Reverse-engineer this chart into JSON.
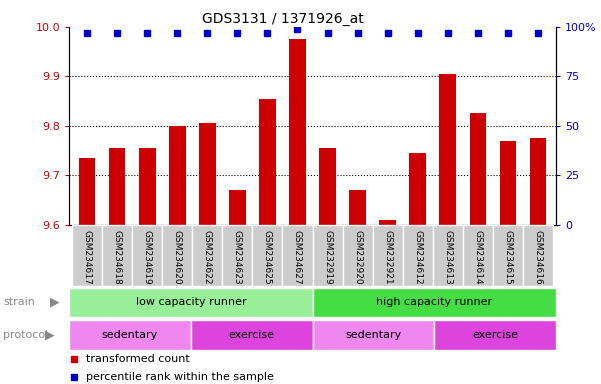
{
  "title": "GDS3131 / 1371926_at",
  "samples": [
    "GSM234617",
    "GSM234618",
    "GSM234619",
    "GSM234620",
    "GSM234622",
    "GSM234623",
    "GSM234625",
    "GSM234627",
    "GSM232919",
    "GSM232920",
    "GSM232921",
    "GSM234612",
    "GSM234613",
    "GSM234614",
    "GSM234615",
    "GSM234616"
  ],
  "transformed_count": [
    9.735,
    9.755,
    9.755,
    9.8,
    9.805,
    9.67,
    9.855,
    9.975,
    9.755,
    9.67,
    9.61,
    9.745,
    9.905,
    9.825,
    9.77,
    9.775
  ],
  "percentile_rank": [
    97,
    97,
    97,
    97,
    97,
    97,
    97,
    99,
    97,
    97,
    97,
    97,
    97,
    97,
    97,
    97
  ],
  "ylim_left": [
    9.6,
    10.0
  ],
  "ylim_right": [
    0,
    100
  ],
  "yticks_left": [
    9.6,
    9.7,
    9.8,
    9.9,
    10.0
  ],
  "yticks_right": [
    0,
    25,
    50,
    75,
    100
  ],
  "bar_color": "#cc0000",
  "dot_color": "#0000cc",
  "strain_groups": [
    {
      "label": "low capacity runner",
      "start": 0,
      "end": 8,
      "color": "#99ee99"
    },
    {
      "label": "high capacity runner",
      "start": 8,
      "end": 16,
      "color": "#44dd44"
    }
  ],
  "protocol_groups": [
    {
      "label": "sedentary",
      "start": 0,
      "end": 4,
      "color": "#ee88ee"
    },
    {
      "label": "exercise",
      "start": 4,
      "end": 8,
      "color": "#dd44dd"
    },
    {
      "label": "sedentary",
      "start": 8,
      "end": 12,
      "color": "#ee88ee"
    },
    {
      "label": "exercise",
      "start": 12,
      "end": 16,
      "color": "#dd44dd"
    }
  ],
  "legend_items": [
    {
      "label": "transformed count",
      "color": "#cc0000"
    },
    {
      "label": "percentile rank within the sample",
      "color": "#0000cc"
    }
  ],
  "left_axis_color": "#cc0000",
  "right_axis_color": "#0000cc",
  "bg_color": "#ffffff",
  "tick_cell_color": "#cccccc",
  "tick_border_color": "#aaaaaa",
  "label_color": "#888888"
}
